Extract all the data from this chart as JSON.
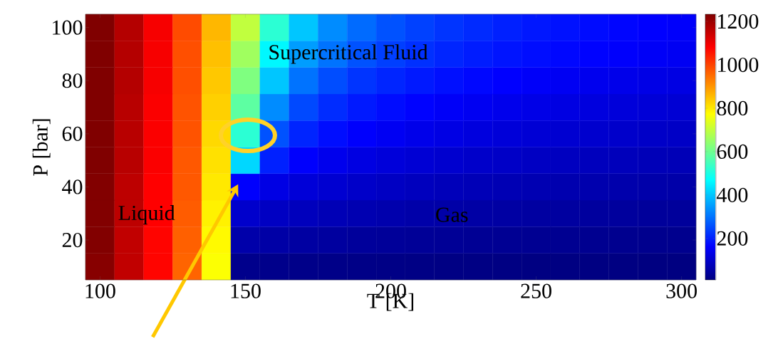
{
  "chart_data": {
    "type": "heatmap",
    "xlabel": "T [K]",
    "ylabel": "P [bar]",
    "categories": [
      "100",
      null,
      null,
      null,
      null,
      "150",
      null,
      null,
      null,
      null,
      "200",
      null,
      null,
      null,
      null,
      "250",
      null,
      null,
      null,
      null,
      "300"
    ],
    "y_categories": [
      "100",
      null,
      "80",
      null,
      "60",
      null,
      "40",
      null,
      "20",
      null
    ],
    "cells": [
      [
        1240,
        1170,
        1090,
        990,
        860,
        700,
        520,
        400,
        330,
        290,
        260,
        240,
        225,
        212,
        200,
        190,
        182,
        175,
        168,
        162,
        157
      ],
      [
        1240,
        1170,
        1090,
        985,
        850,
        660,
        460,
        350,
        300,
        260,
        238,
        220,
        207,
        196,
        186,
        178,
        170,
        164,
        158,
        152,
        147
      ],
      [
        1240,
        1170,
        1090,
        985,
        840,
        620,
        400,
        300,
        255,
        225,
        206,
        192,
        180,
        170,
        162,
        155,
        148,
        142,
        137,
        132,
        128
      ],
      [
        1235,
        1165,
        1085,
        980,
        830,
        580,
        330,
        250,
        215,
        192,
        176,
        164,
        154,
        146,
        139,
        133,
        127,
        122,
        118,
        114,
        110
      ],
      [
        1235,
        1165,
        1085,
        980,
        820,
        520,
        260,
        205,
        178,
        160,
        147,
        137,
        129,
        122,
        116,
        111,
        107,
        103,
        99,
        96,
        93
      ],
      [
        1235,
        1165,
        1085,
        975,
        810,
        420,
        200,
        160,
        140,
        127,
        118,
        110,
        104,
        98,
        94,
        90,
        86,
        83,
        80,
        77,
        75
      ],
      [
        1230,
        1160,
        1080,
        975,
        800,
        160,
        130,
        115,
        106,
        97,
        90,
        84,
        79,
        75,
        72,
        69,
        66,
        64,
        62,
        60,
        58
      ],
      [
        1230,
        1160,
        1080,
        970,
        790,
        100,
        90,
        82,
        74,
        68,
        63,
        59,
        56,
        53,
        51,
        49,
        47,
        45,
        44,
        42,
        41
      ],
      [
        1230,
        1155,
        1075,
        965,
        780,
        60,
        55,
        50,
        46,
        42,
        39,
        37,
        35,
        33,
        32,
        31,
        30,
        28,
        27,
        26,
        26
      ],
      [
        1225,
        1155,
        1075,
        960,
        770,
        24,
        22,
        20,
        19,
        17,
        16,
        15,
        14,
        14,
        13,
        12,
        12,
        11,
        11,
        10,
        10
      ]
    ],
    "clim": [
      9,
      1233
    ],
    "cticks": [
      200,
      400,
      600,
      800,
      1000,
      1200
    ],
    "annotations": [
      "Supercritical Fluid",
      "Liquid",
      "Gas"
    ]
  }
}
